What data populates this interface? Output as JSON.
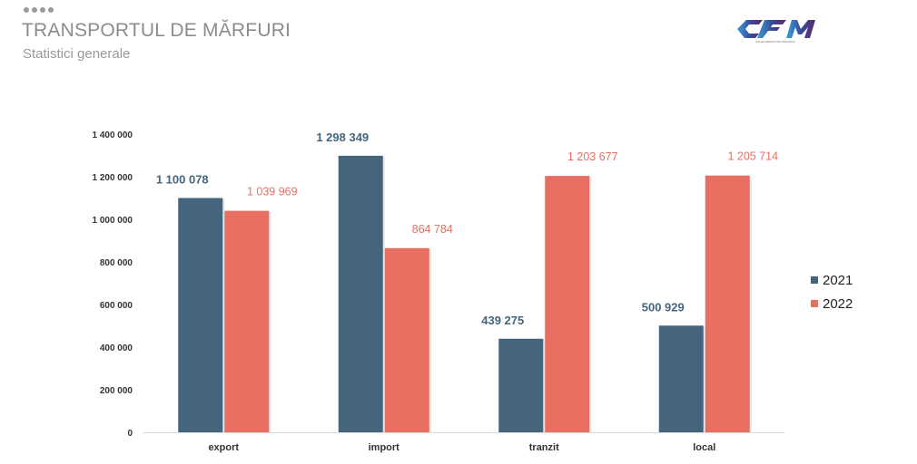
{
  "header": {
    "title": "TRANSPORTUL DE MĂRFURI",
    "subtitle": "Statistici generale"
  },
  "logo": {
    "text": "CFM",
    "tagline": "CALEA FERATĂ DIN MOLDOVA"
  },
  "colors": {
    "series_2021": "#45657d",
    "series_2022": "#e86e61",
    "axis_text": "#333333",
    "muted": "#9a9a9a"
  },
  "chart_data": {
    "type": "bar",
    "categories": [
      "export",
      "import",
      "tranzit",
      "local"
    ],
    "series": [
      {
        "name": "2021",
        "values": [
          1100078,
          1298349,
          439275,
          500929
        ],
        "labels": [
          "1 100 078",
          "1 298 349",
          "439 275",
          "500 929"
        ]
      },
      {
        "name": "2022",
        "values": [
          1039969,
          864784,
          1203677,
          1205714
        ],
        "labels": [
          "1 039 969",
          "864 784",
          "1 203 677",
          "1 205 714"
        ]
      }
    ],
    "yticks": [
      0,
      200000,
      400000,
      600000,
      800000,
      1000000,
      1200000,
      1400000
    ],
    "ytick_labels": [
      "0",
      "200 000",
      "400 000",
      "600 000",
      "800 000",
      "1 000 000",
      "1 200 000",
      "1 400 000"
    ],
    "ylim": [
      0,
      1400000
    ],
    "grid": false,
    "legend": "right"
  }
}
